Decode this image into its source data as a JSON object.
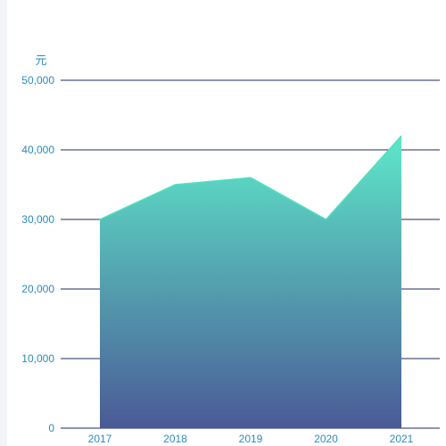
{
  "chart_data": {
    "type": "area",
    "categories": [
      "2017",
      "2018",
      "2019",
      "2020",
      "2021"
    ],
    "series": [
      {
        "values": [
          30000,
          35000,
          36000,
          30000,
          42000
        ]
      }
    ],
    "ylim": [
      0,
      50000
    ],
    "yticks": [
      "0",
      "10,000",
      "20,000",
      "30,000",
      "40,000",
      "50,000"
    ],
    "y_unit": "元",
    "grid": true,
    "colors": {
      "axis_text": "#2a8bbd",
      "grid": "#1f2a5c",
      "area_top": "#5ee8c9",
      "area_bottom": "#4a5a96",
      "line": "#4fe0c0"
    }
  }
}
